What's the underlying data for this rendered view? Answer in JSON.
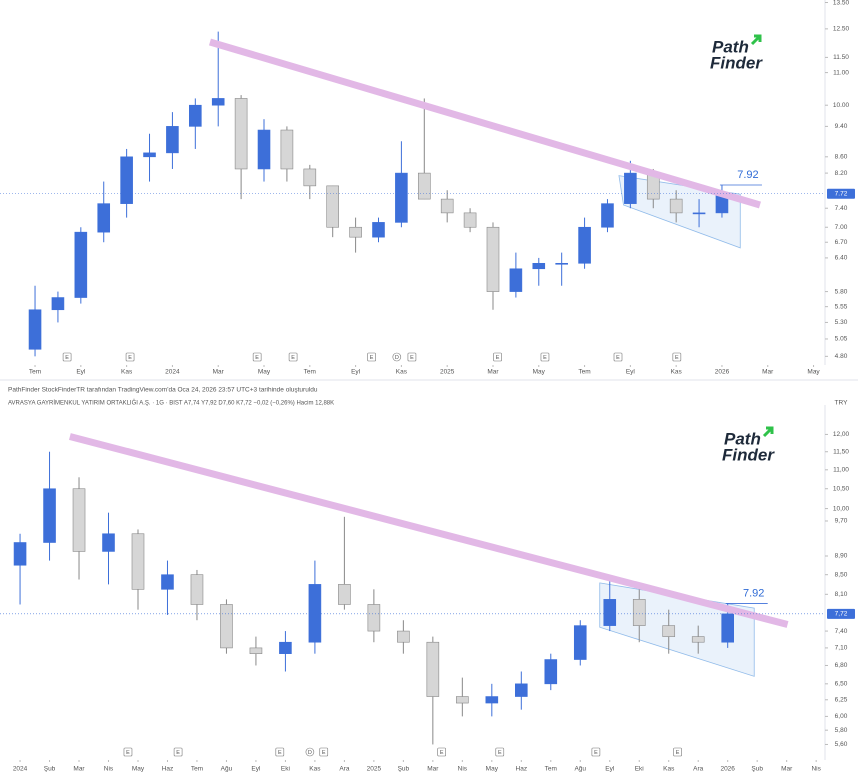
{
  "caption": "PathFinder StockFinderTR tarafından TradingView.com'da Oca 24, 2026 23:57 UTC+3 tarihinde oluşturuldu",
  "logo": {
    "line1": "Path",
    "line2": "Finder"
  },
  "chart_data": [
    {
      "type": "candlestick",
      "log_scale": true,
      "up_color": "#3d6fd9",
      "down_color": "#d6d6d6",
      "xlim": [
        -1.53,
        34.5
      ],
      "ylim": [
        4.68,
        13.6
      ],
      "xticks": [
        {
          "value": 0,
          "label": "Tem"
        },
        {
          "value": 2,
          "label": "Eyl"
        },
        {
          "value": 4,
          "label": "Kas"
        },
        {
          "value": 6,
          "label": "2024"
        },
        {
          "value": 8,
          "label": "Mar"
        },
        {
          "value": 10,
          "label": "May"
        },
        {
          "value": 12,
          "label": "Tem"
        },
        {
          "value": 14,
          "label": "Eyl"
        },
        {
          "value": 16,
          "label": "Kas"
        },
        {
          "value": 18,
          "label": "2025"
        },
        {
          "value": 20,
          "label": "Mar"
        },
        {
          "value": 22,
          "label": "May"
        },
        {
          "value": 24,
          "label": "Tem"
        },
        {
          "value": 26,
          "label": "Eyl"
        },
        {
          "value": 28,
          "label": "Kas"
        },
        {
          "value": 30,
          "label": "2026"
        },
        {
          "value": 32,
          "label": "Mar"
        },
        {
          "value": 34,
          "label": "May"
        }
      ],
      "yticks": [
        {
          "value": 4.8,
          "label": "4.80"
        },
        {
          "value": 5.05,
          "label": "5.05"
        },
        {
          "value": 5.3,
          "label": "5.30"
        },
        {
          "value": 5.55,
          "label": "5.55"
        },
        {
          "value": 5.8,
          "label": "5.80"
        },
        {
          "value": 6.4,
          "label": "6.40"
        },
        {
          "value": 6.7,
          "label": "6.70"
        },
        {
          "value": 7,
          "label": "7.00"
        },
        {
          "value": 7.4,
          "label": "7.40"
        },
        {
          "value": 8.2,
          "label": "8.20"
        },
        {
          "value": 8.6,
          "label": "8.60"
        },
        {
          "value": 9.4,
          "label": "9.40"
        },
        {
          "value": 10,
          "label": "10.00"
        },
        {
          "value": 11,
          "label": "11.00"
        },
        {
          "value": 11.5,
          "label": "11.50"
        },
        {
          "value": 12.5,
          "label": "12.50"
        },
        {
          "value": 13.5,
          "label": "13.50"
        }
      ],
      "candles": {
        "x": [
          0,
          1,
          2,
          3,
          4,
          5,
          6,
          7,
          8,
          9,
          10,
          11,
          12,
          13,
          14,
          15,
          16,
          17,
          18,
          19,
          20,
          21,
          22,
          23,
          24,
          25,
          26,
          27,
          28,
          29,
          30
        ],
        "open": [
          4.9,
          5.5,
          5.7,
          6.9,
          7.5,
          8.6,
          8.7,
          9.4,
          10,
          10.2,
          8.3,
          9.3,
          8.3,
          7.9,
          7,
          6.8,
          7.1,
          8.2,
          7.6,
          7.3,
          7,
          5.8,
          6.2,
          6.3,
          6.3,
          7,
          7.5,
          8.2,
          7.6,
          7.3,
          7.3
        ],
        "high": [
          5.9,
          5.8,
          7,
          8,
          8.8,
          9.2,
          9.8,
          10.2,
          12.4,
          10.3,
          9.6,
          9.4,
          8.4,
          7.9,
          7.2,
          7.2,
          9,
          10.2,
          7.8,
          7.4,
          7.1,
          6.5,
          6.4,
          6.5,
          7.2,
          7.6,
          8.5,
          8.3,
          7.8,
          7.6,
          7.92
        ],
        "low": [
          4.8,
          5.3,
          5.6,
          6.7,
          7.2,
          8,
          8.3,
          8.8,
          9.4,
          7.6,
          8,
          8,
          7.6,
          6.8,
          6.5,
          6.7,
          7,
          7.6,
          7.1,
          6.9,
          5.5,
          5.7,
          5.9,
          5.9,
          6.2,
          6.9,
          7.4,
          7.4,
          7.1,
          7,
          7.2
        ],
        "close": [
          5.5,
          5.7,
          6.9,
          7.5,
          8.6,
          8.7,
          9.4,
          10,
          10.2,
          8.3,
          9.3,
          8.3,
          7.9,
          7,
          6.8,
          7.1,
          8.2,
          7.6,
          7.3,
          7,
          5.8,
          6.2,
          6.3,
          6.3,
          7,
          7.5,
          8.2,
          7.6,
          7.3,
          7.3,
          7.72
        ]
      },
      "trendline": {
        "x": [
          7.64,
          31.66
        ],
        "y": [
          12.03,
          7.47
        ],
        "color": "#e2b8e6"
      },
      "channel": {
        "x": [
          25.5,
          30.8,
          30.8,
          25.7
        ],
        "y": [
          8.14,
          7.71,
          6.59,
          7.47
        ],
        "color": "#2f7fd8"
      },
      "annotation": {
        "value": 7.92,
        "label": "7.92"
      },
      "price_label": {
        "value": 7.72,
        "label": "7.72"
      },
      "events": {
        "x": [
          1.4,
          4.15,
          9.7,
          11.27,
          14.7,
          15.8,
          16.46,
          20.2,
          22.27,
          25.46,
          28.03
        ],
        "labels": [
          "E",
          "E",
          "E",
          "E",
          "E",
          "D",
          "E",
          "E",
          "E",
          "E",
          "E"
        ]
      }
    },
    {
      "type": "candlestick",
      "log_scale": true,
      "up_color": "#3d6fd9",
      "down_color": "#d6d6d6",
      "symbol_line": "AVRASYA GAYRİMENKUL YATIRIM ORTAKLIĞI A.Ş. · 1G · BIST  A7,74  Y7,92  D7,60  K7,72  −0,02 (−0,26%)  Hacim 12,88K",
      "currency": "TRY",
      "xlim": [
        -0.68,
        27.3
      ],
      "ylim": [
        5.39,
        12.9
      ],
      "xticks": [
        {
          "value": 0,
          "label": "2024"
        },
        {
          "value": 1,
          "label": "Şub"
        },
        {
          "value": 2,
          "label": "Mar"
        },
        {
          "value": 3,
          "label": "Nis"
        },
        {
          "value": 4,
          "label": "May"
        },
        {
          "value": 5,
          "label": "Haz"
        },
        {
          "value": 6,
          "label": "Tem"
        },
        {
          "value": 7,
          "label": "Ağu"
        },
        {
          "value": 8,
          "label": "Eyl"
        },
        {
          "value": 9,
          "label": "Eki"
        },
        {
          "value": 10,
          "label": "Kas"
        },
        {
          "value": 11,
          "label": "Ara"
        },
        {
          "value": 12,
          "label": "2025"
        },
        {
          "value": 13,
          "label": "Şub"
        },
        {
          "value": 14,
          "label": "Mar"
        },
        {
          "value": 15,
          "label": "Nis"
        },
        {
          "value": 16,
          "label": "May"
        },
        {
          "value": 17,
          "label": "Haz"
        },
        {
          "value": 18,
          "label": "Tem"
        },
        {
          "value": 19,
          "label": "Ağu"
        },
        {
          "value": 20,
          "label": "Eyl"
        },
        {
          "value": 21,
          "label": "Eki"
        },
        {
          "value": 22,
          "label": "Kas"
        },
        {
          "value": 23,
          "label": "Ara"
        },
        {
          "value": 24,
          "label": "2026"
        },
        {
          "value": 25,
          "label": "Şub"
        },
        {
          "value": 26,
          "label": "Mar"
        },
        {
          "value": 27,
          "label": "Nis"
        }
      ],
      "yticks": [
        {
          "value": 5.6,
          "label": "5,60"
        },
        {
          "value": 5.8,
          "label": "5,80"
        },
        {
          "value": 6,
          "label": "6,00"
        },
        {
          "value": 6.25,
          "label": "6,25"
        },
        {
          "value": 6.5,
          "label": "6,50"
        },
        {
          "value": 6.8,
          "label": "6,80"
        },
        {
          "value": 7.1,
          "label": "7,10"
        },
        {
          "value": 7.4,
          "label": "7,40"
        },
        {
          "value": 8.1,
          "label": "8,10"
        },
        {
          "value": 8.5,
          "label": "8,50"
        },
        {
          "value": 8.9,
          "label": "8,90"
        },
        {
          "value": 9.7,
          "label": "9,70"
        },
        {
          "value": 10,
          "label": "10,00"
        },
        {
          "value": 10.5,
          "label": "10,50"
        },
        {
          "value": 11,
          "label": "11,00"
        },
        {
          "value": 11.5,
          "label": "11,50"
        },
        {
          "value": 12,
          "label": "12,00"
        }
      ],
      "candles": {
        "x": [
          0,
          1,
          2,
          3,
          4,
          5,
          6,
          7,
          8,
          9,
          10,
          11,
          12,
          13,
          14,
          15,
          16,
          17,
          18,
          19,
          20,
          21,
          22,
          23,
          24
        ],
        "open": [
          8.7,
          9.2,
          10.5,
          9,
          9.4,
          8.2,
          8.5,
          7.9,
          7.1,
          7,
          7.2,
          8.3,
          7.9,
          7.4,
          7.2,
          6.3,
          6.2,
          6.3,
          6.5,
          6.9,
          7.5,
          8,
          7.5,
          7.3,
          7.2
        ],
        "high": [
          9.4,
          11.5,
          10.8,
          9.9,
          9.5,
          8.8,
          8.6,
          8,
          7.3,
          7.4,
          8.8,
          9.8,
          8.2,
          7.6,
          7.3,
          6.6,
          6.5,
          6.7,
          7,
          7.6,
          8.4,
          8.2,
          7.8,
          7.5,
          7.92
        ],
        "low": [
          7.9,
          8.8,
          8.4,
          8.3,
          7.8,
          7.7,
          7.6,
          7,
          6.8,
          6.7,
          7,
          7.8,
          7.2,
          7,
          5.6,
          6,
          6,
          6.1,
          6.4,
          6.8,
          7.4,
          7.2,
          7,
          7,
          7.1
        ],
        "close": [
          9.2,
          10.5,
          9,
          9.4,
          8.2,
          8.5,
          7.9,
          7.1,
          7,
          7.2,
          8.3,
          7.9,
          7.4,
          7.2,
          6.3,
          6.2,
          6.3,
          6.5,
          6.9,
          7.5,
          8,
          7.5,
          7.3,
          7.2,
          7.72
        ]
      },
      "trendline": {
        "x": [
          1.69,
          26.03
        ],
        "y": [
          11.94,
          7.52
        ],
        "color": "#e2b8e6"
      },
      "channel": {
        "x": [
          19.66,
          24.9,
          24.9,
          19.66
        ],
        "y": [
          8.33,
          7.83,
          6.62,
          7.47
        ],
        "color": "#2f7fd8"
      },
      "annotation": {
        "value": 7.92,
        "label": "7.92"
      },
      "price_label": {
        "value": 7.72,
        "label": "7,72"
      },
      "events": {
        "x": [
          3.66,
          5.36,
          8.81,
          9.83,
          10.3,
          14.3,
          16.27,
          19.53,
          22.3
        ],
        "labels": [
          "E",
          "E",
          "E",
          "D",
          "E",
          "E",
          "E",
          "E",
          "E"
        ]
      }
    }
  ]
}
